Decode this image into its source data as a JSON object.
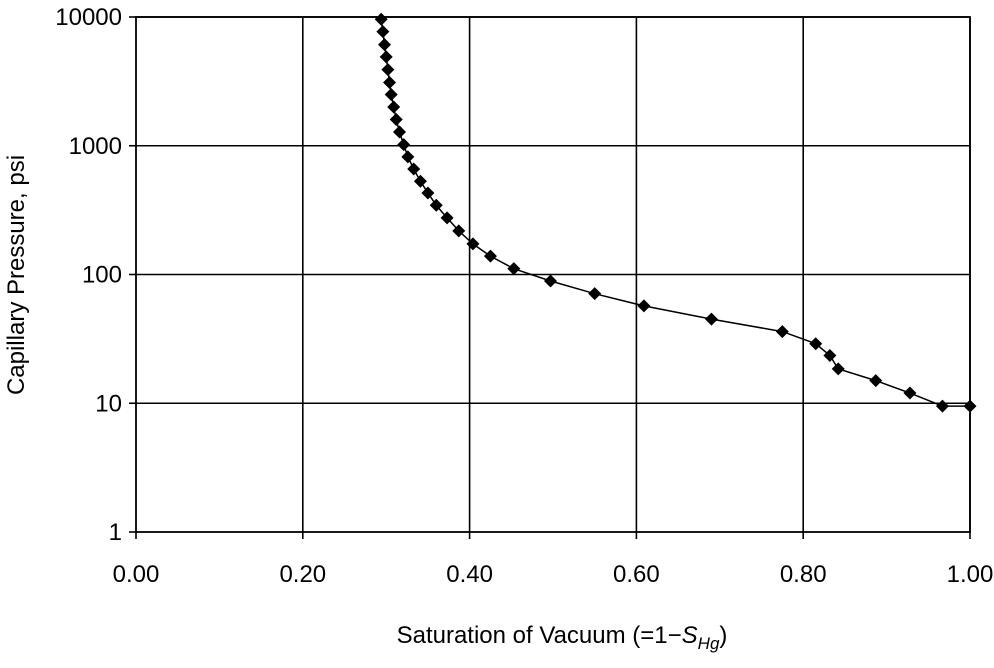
{
  "chart_data": {
    "type": "scatter",
    "title": "",
    "xlabel_parts": {
      "prefix": "Saturation of Vacuum (=1−",
      "symbol": "S",
      "subscript": "Hg",
      "suffix": ")"
    },
    "ylabel": "Capillary Pressure, psi",
    "xlim": [
      0,
      1
    ],
    "ylim": [
      1,
      10000
    ],
    "yscale": "log",
    "grid": true,
    "legend": "none",
    "marker": "diamond",
    "line": true,
    "color": "#000000",
    "x_ticks": [
      0,
      0.2,
      0.4,
      0.6,
      0.8,
      1.0
    ],
    "x_tick_labels": [
      "0.00",
      "0.20",
      "0.40",
      "0.60",
      "0.80",
      "1.00"
    ],
    "y_ticks": [
      1,
      10,
      100,
      1000,
      10000
    ],
    "y_tick_labels": [
      "1",
      "10",
      "100",
      "1000",
      "10000"
    ],
    "series": [
      {
        "x": [
          0.294,
          0.296,
          0.298,
          0.3,
          0.302,
          0.304,
          0.306,
          0.309,
          0.312,
          0.316,
          0.321,
          0.326,
          0.333,
          0.341,
          0.35,
          0.36,
          0.373,
          0.387,
          0.404,
          0.425,
          0.453,
          0.497,
          0.55,
          0.609,
          0.69,
          0.775,
          0.815,
          0.832,
          0.842,
          0.887,
          0.928,
          0.967,
          1.0
        ],
        "y": [
          9600,
          7700,
          6100,
          4900,
          3900,
          3100,
          2500,
          2000,
          1600,
          1280,
          1020,
          820,
          660,
          530,
          430,
          345,
          275,
          218,
          173,
          139,
          111,
          89,
          71,
          57,
          45,
          36,
          29,
          23.5,
          18.5,
          15,
          12,
          9.5,
          9.5
        ]
      }
    ]
  }
}
